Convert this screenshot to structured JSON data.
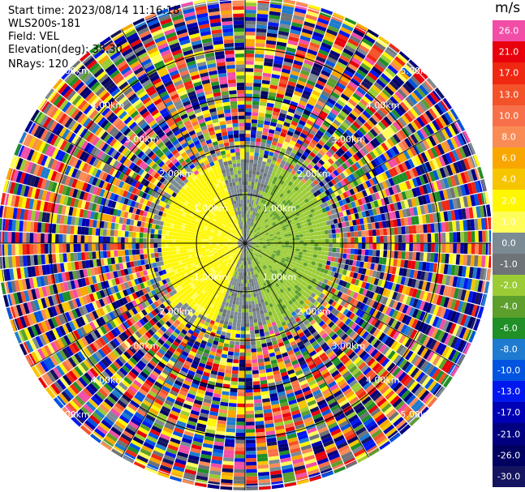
{
  "info": {
    "start_time": "Start time: 2023/08/14 11:16:18",
    "instrument": "WLS200s-181",
    "field": "Field: VEL",
    "elevation": "Elevation(deg): 35.30",
    "nrays": "NRays: 120"
  },
  "colorbar": {
    "unit": "m/s",
    "levels": [
      {
        "label": "26.0",
        "color": "#f24ea8"
      },
      {
        "label": "21.0",
        "color": "#e8000c"
      },
      {
        "label": "17.0",
        "color": "#f02812"
      },
      {
        "label": "13.0",
        "color": "#f4532a"
      },
      {
        "label": "10.0",
        "color": "#f8704a"
      },
      {
        "label": "8.0",
        "color": "#f98c55"
      },
      {
        "label": "6.0",
        "color": "#f9a700"
      },
      {
        "label": "4.0",
        "color": "#f7c400"
      },
      {
        "label": "2.0",
        "color": "#fff700"
      },
      {
        "label": "1.0",
        "color": "#fffd5a"
      },
      {
        "label": "0.0",
        "color": "#7c8a94"
      },
      {
        "label": "-1.0",
        "color": "#6e7378"
      },
      {
        "label": "-2.0",
        "color": "#9bcc35"
      },
      {
        "label": "-4.0",
        "color": "#5c9f2d"
      },
      {
        "label": "-6.0",
        "color": "#1f8f26"
      },
      {
        "label": "-8.0",
        "color": "#1e7bd0"
      },
      {
        "label": "-10.0",
        "color": "#0054e0"
      },
      {
        "label": "-13.0",
        "color": "#0018f0"
      },
      {
        "label": "-17.0",
        "color": "#0000b4"
      },
      {
        "label": "-21.0",
        "color": "#000080"
      },
      {
        "label": "-26.0",
        "color": "#000060"
      },
      {
        "label": "-30.0",
        "color": "#141460"
      }
    ]
  },
  "chart_data": {
    "type": "heatmap",
    "projection": "polar PPI",
    "field": "VEL",
    "units": "m/s",
    "nrays": 120,
    "range_rings_km": [
      1.0,
      2.0,
      3.0,
      4.0,
      5.0
    ],
    "ring_labels": [
      "1.00km",
      "2.00km",
      "3.00km",
      "4.00km",
      "5.00km"
    ],
    "spokes_deg": [
      0,
      30,
      60,
      90,
      120,
      150,
      180,
      210,
      240,
      270,
      300,
      330
    ],
    "pattern": "near range (< ~1.7 km): positive (yellow) to the west, negative (green) to the east, near-zero gray; beyond ~2 km: noisy multicolor values"
  }
}
